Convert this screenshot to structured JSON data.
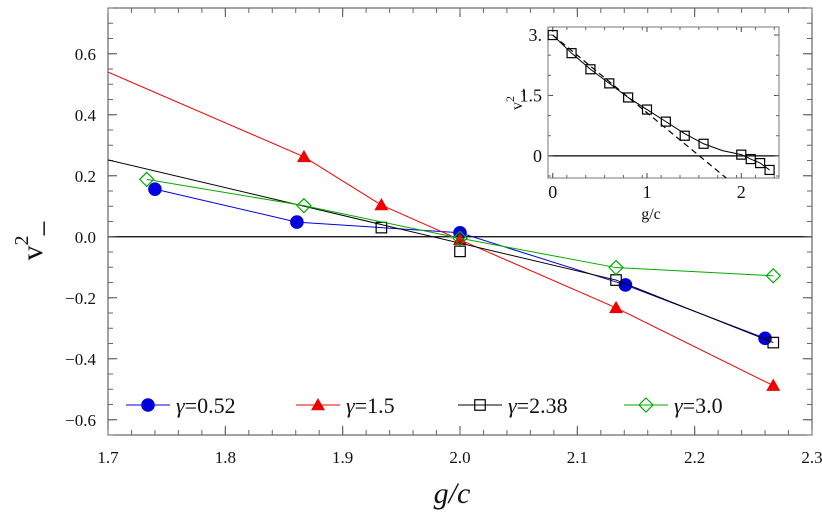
{
  "chart_data": [
    {
      "type": "line",
      "xlabel": "g/c",
      "ylabel": "v",
      "ylabel_superscript": "2",
      "ylabel_subscript": "−",
      "xlim": [
        1.7,
        2.3
      ],
      "ylim": [
        -0.65,
        0.75
      ],
      "xticks": [
        1.7,
        1.8,
        1.9,
        2.0,
        2.1,
        2.2,
        2.3
      ],
      "xtick_labels": [
        "1.7",
        "1.8",
        "1.9",
        "2.0",
        "2.1",
        "2.2",
        "2.3"
      ],
      "yticks": [
        -0.6,
        -0.4,
        -0.2,
        0.0,
        0.2,
        0.4,
        0.6
      ],
      "ytick_labels": [
        "−0.6",
        "−0.4",
        "−0.2",
        "0.0",
        "0.2",
        "0.4",
        "0.6"
      ],
      "zero_line": true,
      "grid": false,
      "legend_placement": "bottom",
      "series": [
        {
          "name": "γ=0.52",
          "color": "#0000dd",
          "marker": "filled-circle",
          "points": [
            [
              1.74,
              0.156
            ],
            [
              1.861,
              0.048
            ],
            [
              2.0,
              0.013
            ],
            [
              2.141,
              -0.158
            ],
            [
              2.26,
              -0.333
            ]
          ],
          "line": [
            [
              1.74,
              0.156
            ],
            [
              1.861,
              0.048
            ],
            [
              2.0,
              0.013
            ],
            [
              2.141,
              -0.158
            ],
            [
              2.26,
              -0.333
            ]
          ]
        },
        {
          "name": "γ=1.5",
          "color": "#ee0000",
          "marker": "filled-triangle",
          "points": [
            [
              1.867,
              0.262
            ],
            [
              1.933,
              0.104
            ],
            [
              2.0,
              -0.01
            ],
            [
              2.133,
              -0.233
            ],
            [
              2.267,
              -0.488
            ]
          ],
          "line": [
            [
              1.7,
              0.54
            ],
            [
              1.867,
              0.262
            ],
            [
              1.933,
              0.104
            ],
            [
              2.0,
              -0.01
            ],
            [
              2.133,
              -0.233
            ],
            [
              2.267,
              -0.488
            ]
          ]
        },
        {
          "name": "γ=2.38",
          "color": "#000000",
          "marker": "open-square",
          "points": [
            [
              1.933,
              0.03
            ],
            [
              2.0,
              -0.048
            ],
            [
              2.133,
              -0.142
            ],
            [
              2.267,
              -0.347
            ]
          ],
          "line": [
            [
              1.7,
              0.252
            ],
            [
              2.133,
              -0.142
            ],
            [
              2.267,
              -0.347
            ]
          ]
        },
        {
          "name": "γ=3.0",
          "color": "#00aa00",
          "marker": "open-diamond",
          "points": [
            [
              1.733,
              0.188
            ],
            [
              1.867,
              0.102
            ],
            [
              2.0,
              -0.005
            ],
            [
              2.133,
              -0.101
            ],
            [
              2.267,
              -0.128
            ]
          ],
          "line": [
            [
              1.733,
              0.188
            ],
            [
              1.867,
              0.102
            ],
            [
              2.0,
              -0.005
            ],
            [
              2.133,
              -0.101
            ],
            [
              2.267,
              -0.128
            ]
          ]
        }
      ]
    },
    {
      "type": "scatter",
      "inset": true,
      "xlabel": "g/c",
      "ylabel": "v",
      "ylabel_superscript": "2",
      "ylabel_subscript": "−",
      "xlim": [
        -0.05,
        2.4
      ],
      "ylim": [
        -0.55,
        3.2
      ],
      "xticks": [
        0,
        1,
        2
      ],
      "xtick_labels": [
        "0",
        "1",
        "2"
      ],
      "yticks": [
        0,
        1.5,
        3.0
      ],
      "ytick_labels": [
        "0",
        "1.5",
        "3."
      ],
      "zero_line": true,
      "series": [
        {
          "marker": "open-square",
          "color": "#000000",
          "points": [
            [
              0.0,
              3.0
            ],
            [
              0.2,
              2.55
            ],
            [
              0.4,
              2.15
            ],
            [
              0.6,
              1.8
            ],
            [
              0.8,
              1.45
            ],
            [
              1.0,
              1.15
            ],
            [
              1.2,
              0.85
            ],
            [
              1.4,
              0.5
            ],
            [
              1.6,
              0.3
            ],
            [
              2.0,
              0.03
            ],
            [
              2.1,
              -0.08
            ],
            [
              2.2,
              -0.18
            ],
            [
              2.3,
              -0.35
            ]
          ],
          "solid_curve": [
            [
              0.0,
              3.0
            ],
            [
              0.2,
              2.55
            ],
            [
              0.4,
              2.15
            ],
            [
              0.6,
              1.8
            ],
            [
              0.8,
              1.45
            ],
            [
              1.0,
              1.15
            ],
            [
              1.2,
              0.85
            ],
            [
              1.4,
              0.55
            ],
            [
              1.6,
              0.3
            ],
            [
              1.8,
              0.13
            ],
            [
              2.0,
              0.03
            ],
            [
              2.1,
              -0.08
            ],
            [
              2.2,
              -0.18
            ],
            [
              2.3,
              -0.35
            ]
          ],
          "dashed_line": [
            [
              0.0,
              3.0
            ],
            [
              1.84,
              -0.55
            ]
          ]
        }
      ]
    }
  ],
  "legend": [
    {
      "label": "γ=0.52",
      "color": "#0000dd",
      "marker": "filled-circle"
    },
    {
      "label": "γ=1.5",
      "color": "#ee0000",
      "marker": "filled-triangle"
    },
    {
      "label": "γ=2.38",
      "color": "#000000",
      "marker": "open-square"
    },
    {
      "label": "γ=3.0",
      "color": "#00aa00",
      "marker": "open-diamond"
    }
  ]
}
